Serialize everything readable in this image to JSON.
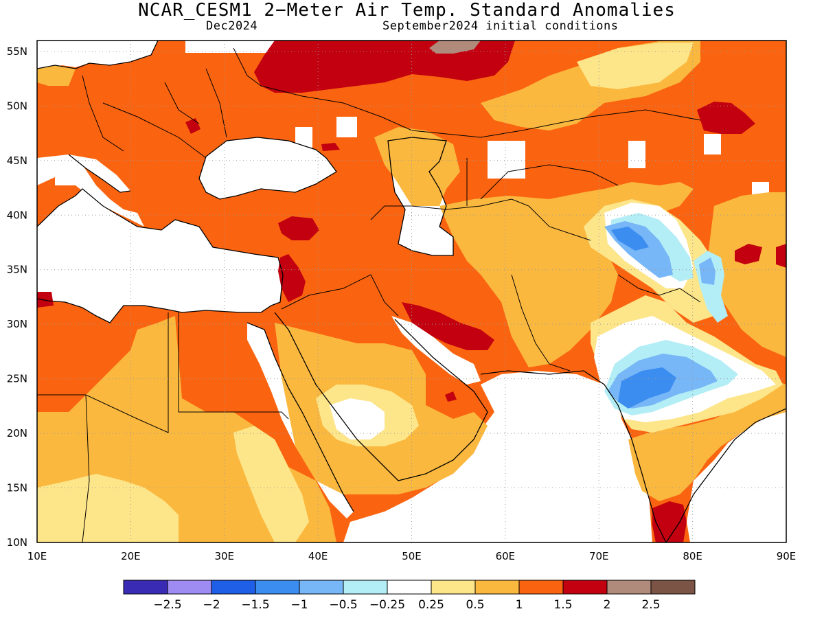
{
  "title": "NCAR_CESM1 2−Meter Air Temp. Standard Anomalies",
  "valid_month": "Dec2024",
  "init": "September2024 initial conditions",
  "map": {
    "lon_range": [
      10,
      90
    ],
    "lat_range": [
      10,
      56
    ],
    "lon_ticks": [
      "10E",
      "20E",
      "30E",
      "40E",
      "50E",
      "60E",
      "70E",
      "80E",
      "90E"
    ],
    "lat_ticks": [
      "55N",
      "50N",
      "45N",
      "40N",
      "35N",
      "30N",
      "25N",
      "20N",
      "15N",
      "10N"
    ],
    "gridlines": "dotted"
  },
  "colorbar": {
    "colors": [
      "#3a2bb5",
      "#9f8cf3",
      "#1f5ee6",
      "#3b8df0",
      "#77b6f7",
      "#b3edf5",
      "#ffffff",
      "#fde58a",
      "#fbb83f",
      "#fa6410",
      "#c2000f",
      "#b08a7a",
      "#7b5446"
    ],
    "labels": [
      "−2.5",
      "−2",
      "−1.5",
      "−1",
      "−0.5",
      "−0.25",
      "0.25",
      "0.5",
      "1",
      "1.5",
      "2",
      "2.5"
    ]
  },
  "palette": {
    "ocean": "#ffffff",
    "near_normal": "#ffffff",
    "above_0_25": "#fde58a",
    "above_0_5": "#fbb83f",
    "above_1": "#fa6410",
    "above_1_5": "#c2000f",
    "above_2": "#b08a7a",
    "below_0_25": "#b3edf5",
    "below_0_5": "#77b6f7",
    "below_1": "#3b8df0"
  }
}
